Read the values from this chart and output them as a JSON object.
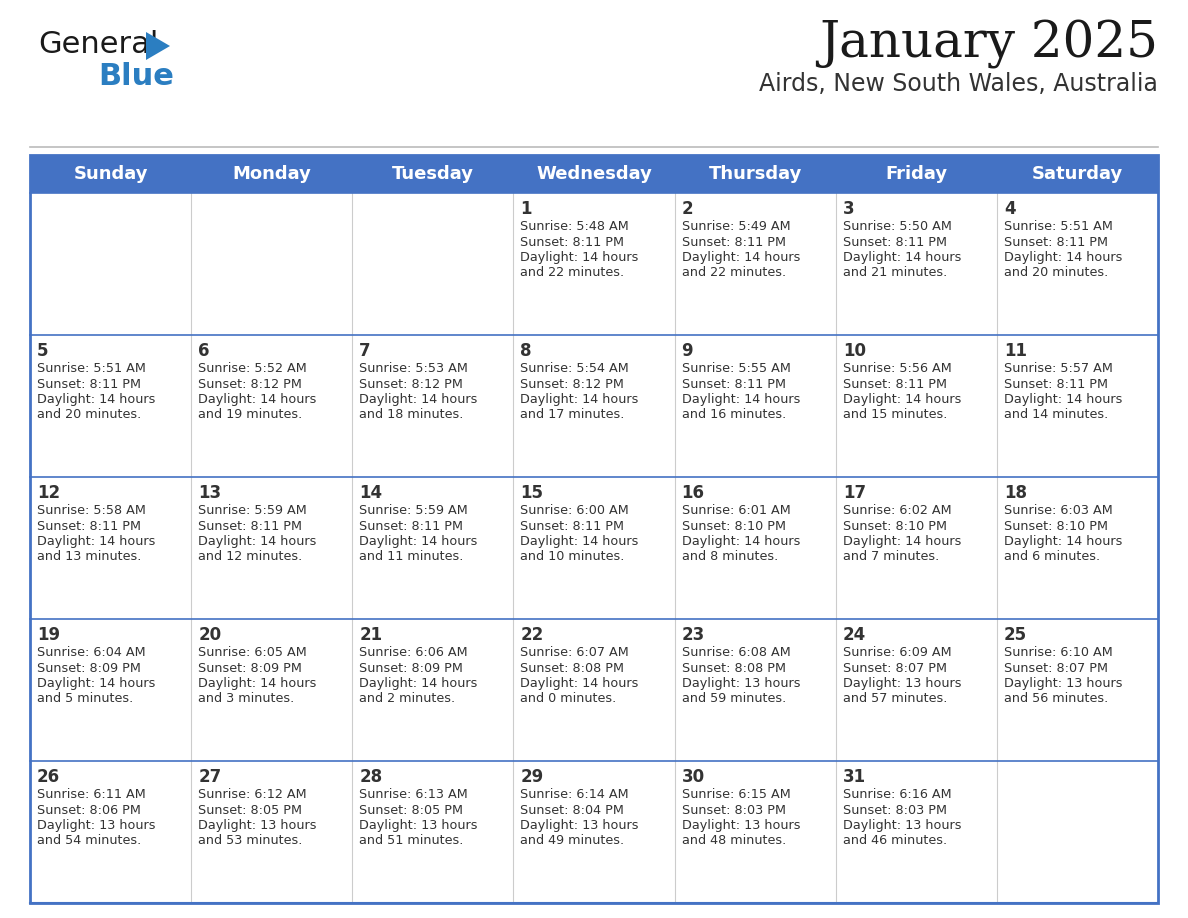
{
  "title": "January 2025",
  "subtitle": "Airds, New South Wales, Australia",
  "days_of_week": [
    "Sunday",
    "Monday",
    "Tuesday",
    "Wednesday",
    "Thursday",
    "Friday",
    "Saturday"
  ],
  "header_bg": "#4472C4",
  "header_text": "#FFFFFF",
  "cell_bg": "#FFFFFF",
  "cell_bg_alt": "#F0F4FA",
  "text_color": "#333333",
  "border_color": "#4472C4",
  "sep_color": "#BBBBBB",
  "vert_line_color": "#CCCCCC",
  "calendar_data": [
    [
      null,
      null,
      null,
      {
        "day": 1,
        "sunrise": "5:48 AM",
        "sunset": "8:11 PM",
        "daylight": "14 hours and 22 minutes."
      },
      {
        "day": 2,
        "sunrise": "5:49 AM",
        "sunset": "8:11 PM",
        "daylight": "14 hours and 22 minutes."
      },
      {
        "day": 3,
        "sunrise": "5:50 AM",
        "sunset": "8:11 PM",
        "daylight": "14 hours and 21 minutes."
      },
      {
        "day": 4,
        "sunrise": "5:51 AM",
        "sunset": "8:11 PM",
        "daylight": "14 hours and 20 minutes."
      }
    ],
    [
      {
        "day": 5,
        "sunrise": "5:51 AM",
        "sunset": "8:11 PM",
        "daylight": "14 hours and 20 minutes."
      },
      {
        "day": 6,
        "sunrise": "5:52 AM",
        "sunset": "8:12 PM",
        "daylight": "14 hours and 19 minutes."
      },
      {
        "day": 7,
        "sunrise": "5:53 AM",
        "sunset": "8:12 PM",
        "daylight": "14 hours and 18 minutes."
      },
      {
        "day": 8,
        "sunrise": "5:54 AM",
        "sunset": "8:12 PM",
        "daylight": "14 hours and 17 minutes."
      },
      {
        "day": 9,
        "sunrise": "5:55 AM",
        "sunset": "8:11 PM",
        "daylight": "14 hours and 16 minutes."
      },
      {
        "day": 10,
        "sunrise": "5:56 AM",
        "sunset": "8:11 PM",
        "daylight": "14 hours and 15 minutes."
      },
      {
        "day": 11,
        "sunrise": "5:57 AM",
        "sunset": "8:11 PM",
        "daylight": "14 hours and 14 minutes."
      }
    ],
    [
      {
        "day": 12,
        "sunrise": "5:58 AM",
        "sunset": "8:11 PM",
        "daylight": "14 hours and 13 minutes."
      },
      {
        "day": 13,
        "sunrise": "5:59 AM",
        "sunset": "8:11 PM",
        "daylight": "14 hours and 12 minutes."
      },
      {
        "day": 14,
        "sunrise": "5:59 AM",
        "sunset": "8:11 PM",
        "daylight": "14 hours and 11 minutes."
      },
      {
        "day": 15,
        "sunrise": "6:00 AM",
        "sunset": "8:11 PM",
        "daylight": "14 hours and 10 minutes."
      },
      {
        "day": 16,
        "sunrise": "6:01 AM",
        "sunset": "8:10 PM",
        "daylight": "14 hours and 8 minutes."
      },
      {
        "day": 17,
        "sunrise": "6:02 AM",
        "sunset": "8:10 PM",
        "daylight": "14 hours and 7 minutes."
      },
      {
        "day": 18,
        "sunrise": "6:03 AM",
        "sunset": "8:10 PM",
        "daylight": "14 hours and 6 minutes."
      }
    ],
    [
      {
        "day": 19,
        "sunrise": "6:04 AM",
        "sunset": "8:09 PM",
        "daylight": "14 hours and 5 minutes."
      },
      {
        "day": 20,
        "sunrise": "6:05 AM",
        "sunset": "8:09 PM",
        "daylight": "14 hours and 3 minutes."
      },
      {
        "day": 21,
        "sunrise": "6:06 AM",
        "sunset": "8:09 PM",
        "daylight": "14 hours and 2 minutes."
      },
      {
        "day": 22,
        "sunrise": "6:07 AM",
        "sunset": "8:08 PM",
        "daylight": "14 hours and 0 minutes."
      },
      {
        "day": 23,
        "sunrise": "6:08 AM",
        "sunset": "8:08 PM",
        "daylight": "13 hours and 59 minutes."
      },
      {
        "day": 24,
        "sunrise": "6:09 AM",
        "sunset": "8:07 PM",
        "daylight": "13 hours and 57 minutes."
      },
      {
        "day": 25,
        "sunrise": "6:10 AM",
        "sunset": "8:07 PM",
        "daylight": "13 hours and 56 minutes."
      }
    ],
    [
      {
        "day": 26,
        "sunrise": "6:11 AM",
        "sunset": "8:06 PM",
        "daylight": "13 hours and 54 minutes."
      },
      {
        "day": 27,
        "sunrise": "6:12 AM",
        "sunset": "8:05 PM",
        "daylight": "13 hours and 53 minutes."
      },
      {
        "day": 28,
        "sunrise": "6:13 AM",
        "sunset": "8:05 PM",
        "daylight": "13 hours and 51 minutes."
      },
      {
        "day": 29,
        "sunrise": "6:14 AM",
        "sunset": "8:04 PM",
        "daylight": "13 hours and 49 minutes."
      },
      {
        "day": 30,
        "sunrise": "6:15 AM",
        "sunset": "8:03 PM",
        "daylight": "13 hours and 48 minutes."
      },
      {
        "day": 31,
        "sunrise": "6:16 AM",
        "sunset": "8:03 PM",
        "daylight": "13 hours and 46 minutes."
      },
      null
    ]
  ],
  "logo_color_general": "#1A1A1A",
  "logo_color_blue": "#2B7EC1",
  "logo_triangle_color": "#2B7EC1",
  "fig_width": 11.88,
  "fig_height": 9.18,
  "dpi": 100
}
